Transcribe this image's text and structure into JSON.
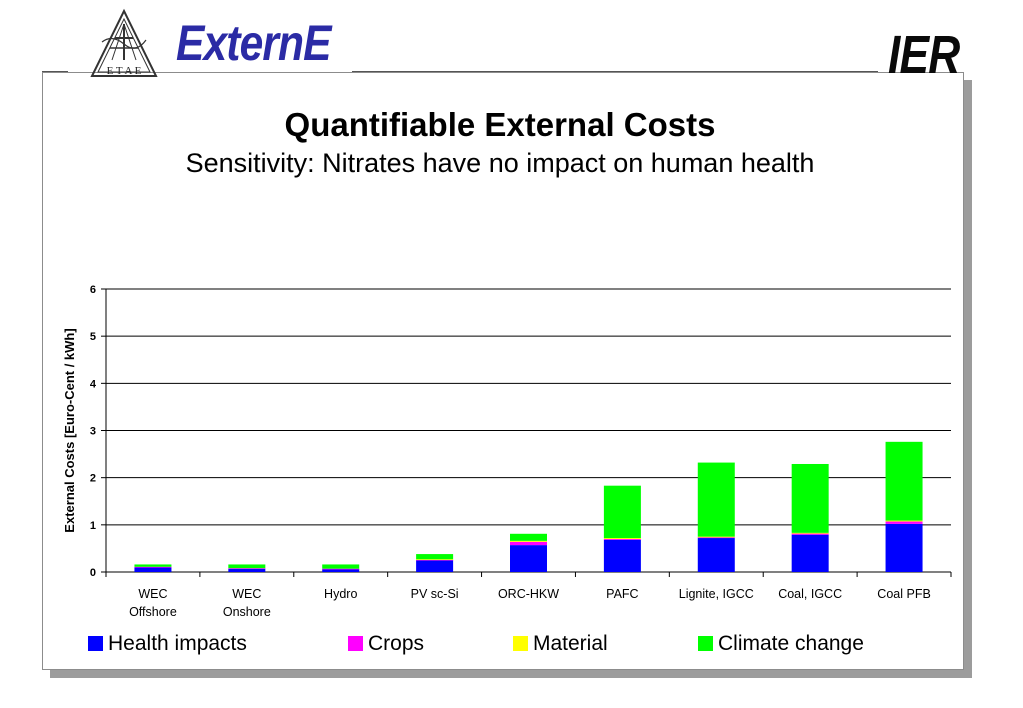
{
  "header": {
    "logo_left_lettering": "E T A E",
    "brand_wordmark": "ExternE",
    "brand_right": "IER"
  },
  "slide": {
    "title": "Quantifiable External Costs",
    "subtitle": "Sensitivity: Nitrates have no impact on human health"
  },
  "chart_data": {
    "type": "bar",
    "stacked": true,
    "categories": [
      "WEC Offshore",
      "WEC Onshore",
      "Hydro",
      "PV sc-Si",
      "ORC-HKW",
      "PAFC",
      "Lignite, IGCC",
      "Coal, IGCC",
      "Coal PFB"
    ],
    "category_lines": [
      [
        "WEC",
        "Offshore"
      ],
      [
        "WEC",
        "Onshore"
      ],
      [
        "Hydro"
      ],
      [
        "PV sc-Si"
      ],
      [
        "ORC-HKW"
      ],
      [
        "PAFC"
      ],
      [
        "Lignite, IGCC"
      ],
      [
        "Coal, IGCC"
      ],
      [
        "Coal PFB"
      ]
    ],
    "series": [
      {
        "name": "Health impacts",
        "color": "#0000ff",
        "values": [
          0.1,
          0.07,
          0.06,
          0.25,
          0.57,
          0.68,
          0.72,
          0.79,
          1.02
        ]
      },
      {
        "name": "Crops",
        "color": "#ff00ff",
        "values": [
          0.01,
          0.01,
          0.01,
          0.01,
          0.07,
          0.02,
          0.02,
          0.03,
          0.05
        ]
      },
      {
        "name": "Material",
        "color": "#ffff00",
        "values": [
          0.0,
          0.0,
          0.0,
          0.01,
          0.02,
          0.02,
          0.01,
          0.01,
          0.02
        ]
      },
      {
        "name": "Climate change",
        "color": "#00ff00",
        "values": [
          0.05,
          0.08,
          0.09,
          0.11,
          0.15,
          1.11,
          1.57,
          1.46,
          1.67
        ]
      }
    ],
    "ylabel": "External Costs [Euro-Cent / kWh]",
    "xlabel": "",
    "ylim": [
      0,
      6
    ],
    "yticks": [
      "0",
      "1",
      "2",
      "3",
      "4",
      "5",
      "6"
    ],
    "grid": true,
    "legend_position": "bottom"
  }
}
